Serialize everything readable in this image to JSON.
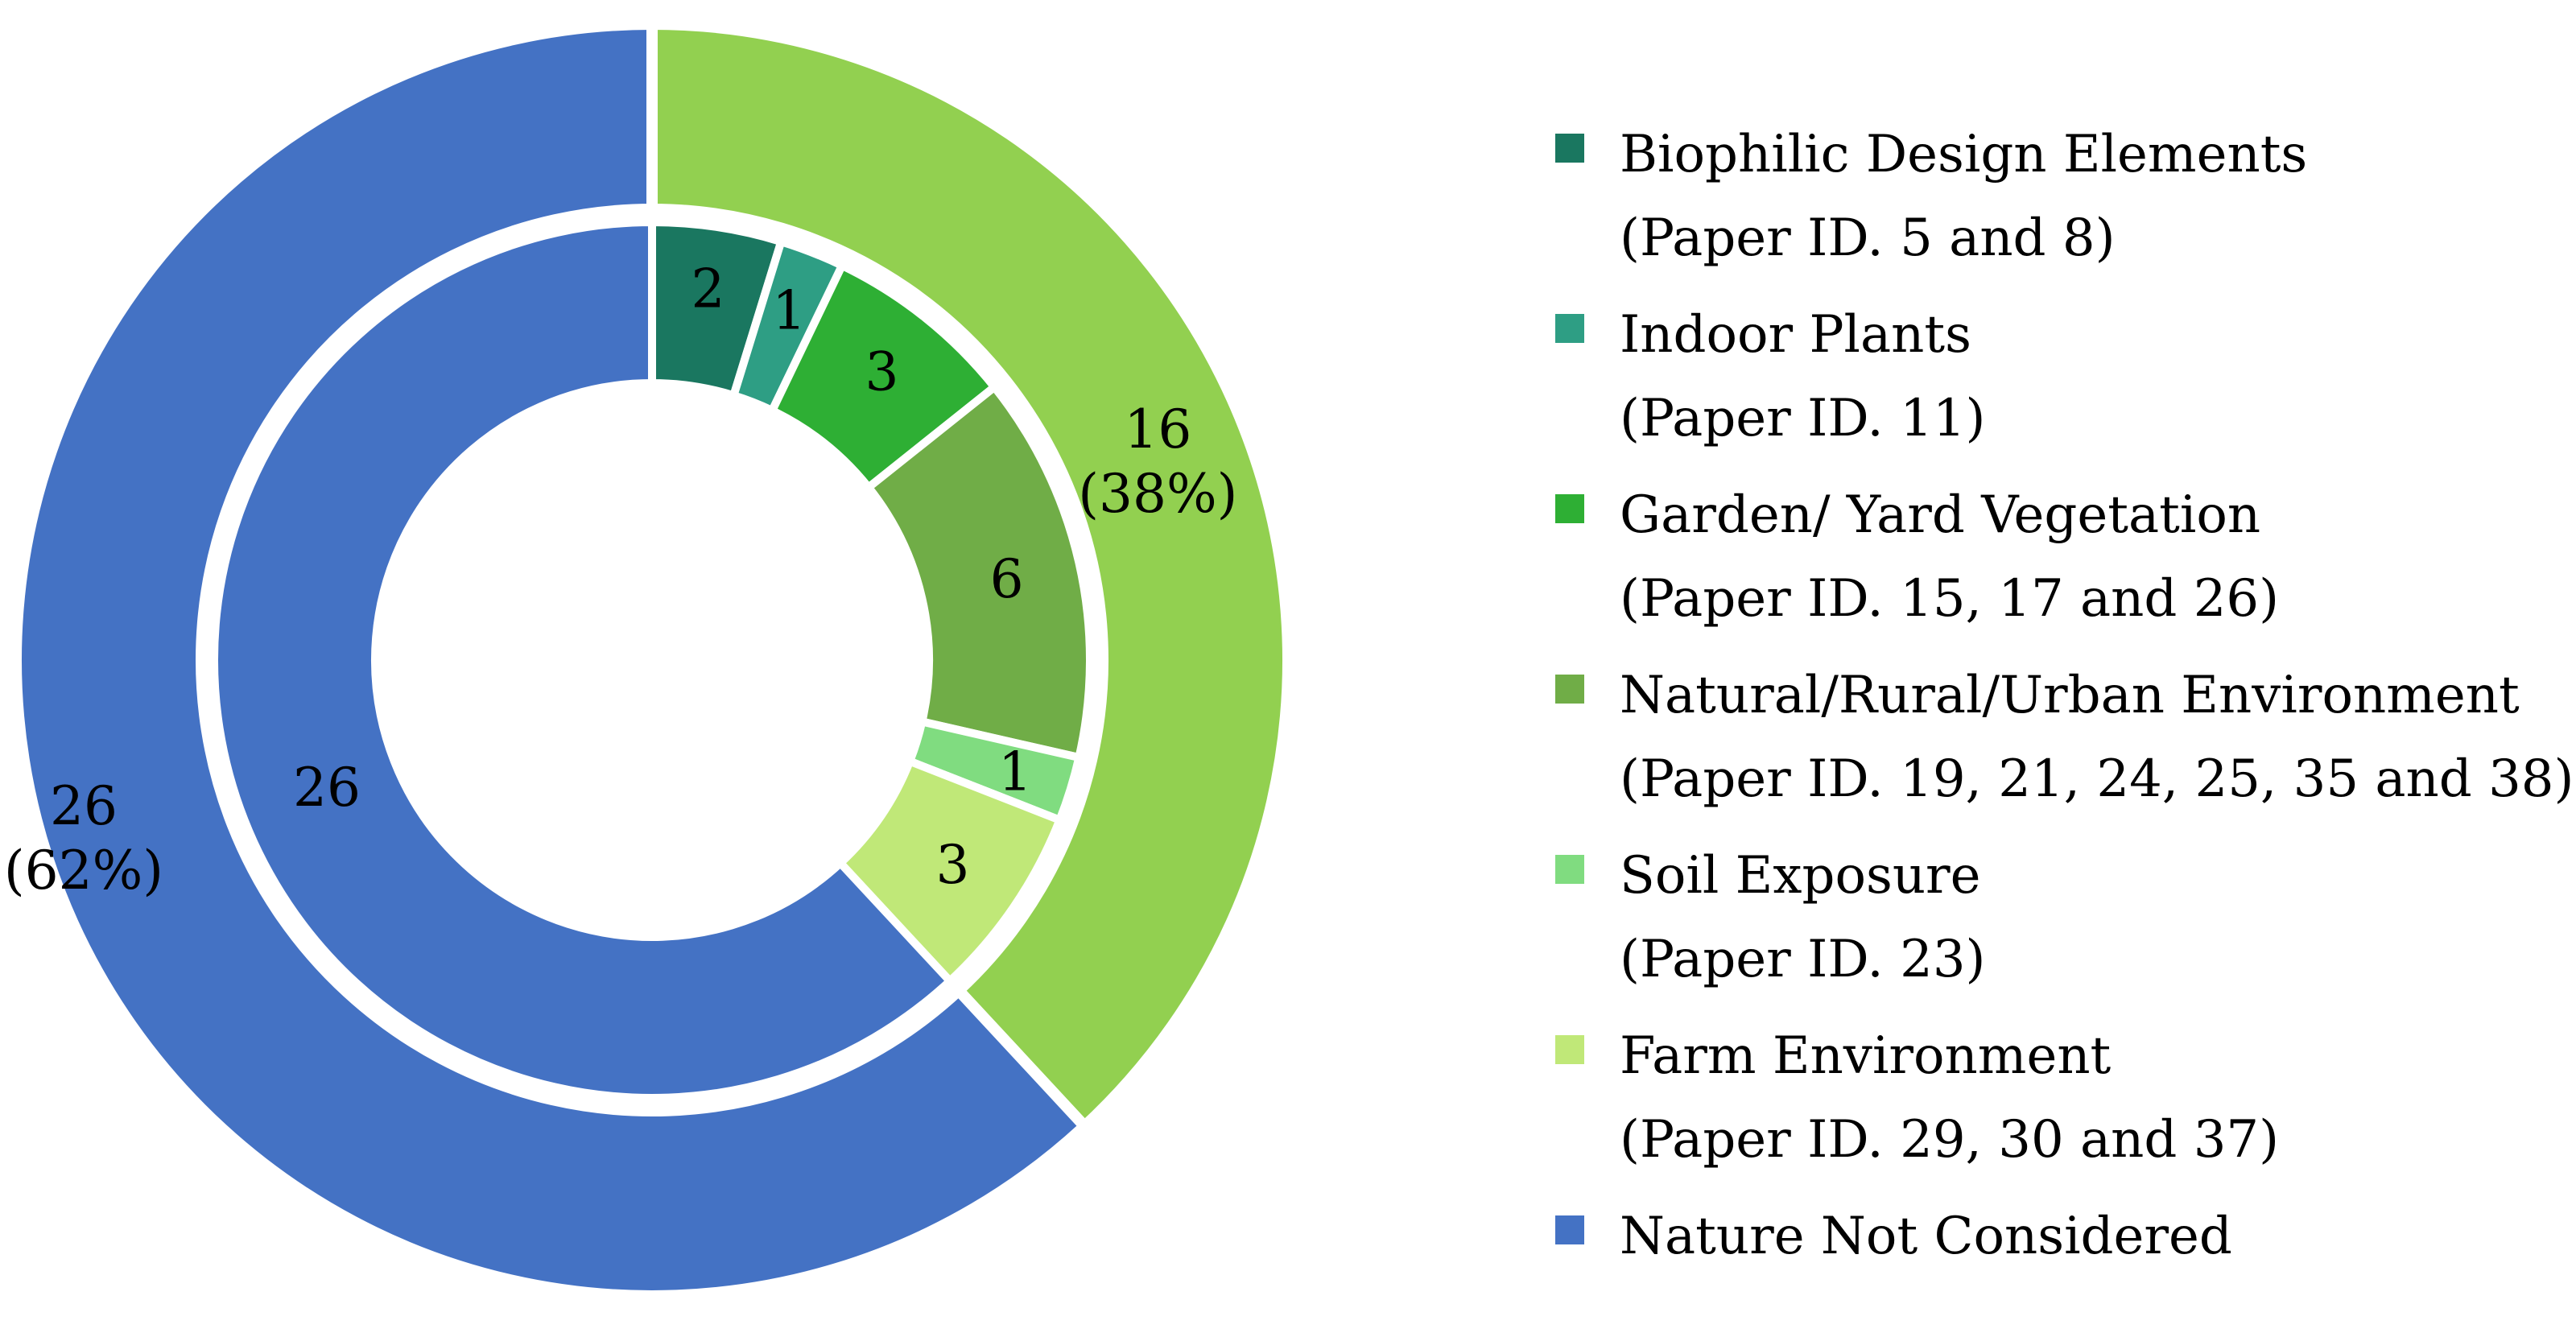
{
  "chart_data": {
    "type": "pie",
    "subtype": "nested-donut",
    "outer_ring": {
      "slices": [
        {
          "value": 16,
          "label": "16",
          "percent_label": "(38%)",
          "color": "#92D050"
        },
        {
          "value": 26,
          "label": "26",
          "percent_label": "(62%)",
          "color": "#4472C4"
        }
      ]
    },
    "inner_ring": {
      "slices": [
        {
          "value": 2,
          "label": "2",
          "color": "#1A7760"
        },
        {
          "value": 1,
          "label": "1",
          "color": "#2E9E84"
        },
        {
          "value": 3,
          "label": "3",
          "color": "#2EAF34"
        },
        {
          "value": 6,
          "label": "6",
          "color": "#70AD47"
        },
        {
          "value": 1,
          "label": "1",
          "color": "#80DC80"
        },
        {
          "value": 3,
          "label": "3",
          "color": "#C0E878"
        },
        {
          "value": 26,
          "label": "26",
          "color": "#4472C4"
        }
      ]
    },
    "legend": {
      "position": "right",
      "entries": [
        {
          "line1": "Biophilic Design Elements",
          "line2": "(Paper ID. 5 and 8)",
          "color": "#1A7760"
        },
        {
          "line1": "Indoor Plants",
          "line2": "(Paper ID. 11)",
          "color": "#2E9E84"
        },
        {
          "line1": "Garden/ Yard Vegetation",
          "line2": "(Paper ID. 15, 17 and 26)",
          "color": "#2EAF34"
        },
        {
          "line1": "Natural/Rural/Urban Environment",
          "line2": "(Paper ID. 19, 21, 24, 25, 35 and 38)",
          "color": "#70AD47"
        },
        {
          "line1": "Soil Exposure",
          "line2": "(Paper ID. 23)",
          "color": "#80DC80"
        },
        {
          "line1": "Farm Environment",
          "line2": "(Paper ID. 29, 30 and 37)",
          "color": "#C0E878"
        },
        {
          "line1": "Nature Not Considered",
          "line2": "",
          "color": "#4472C4"
        }
      ]
    }
  }
}
